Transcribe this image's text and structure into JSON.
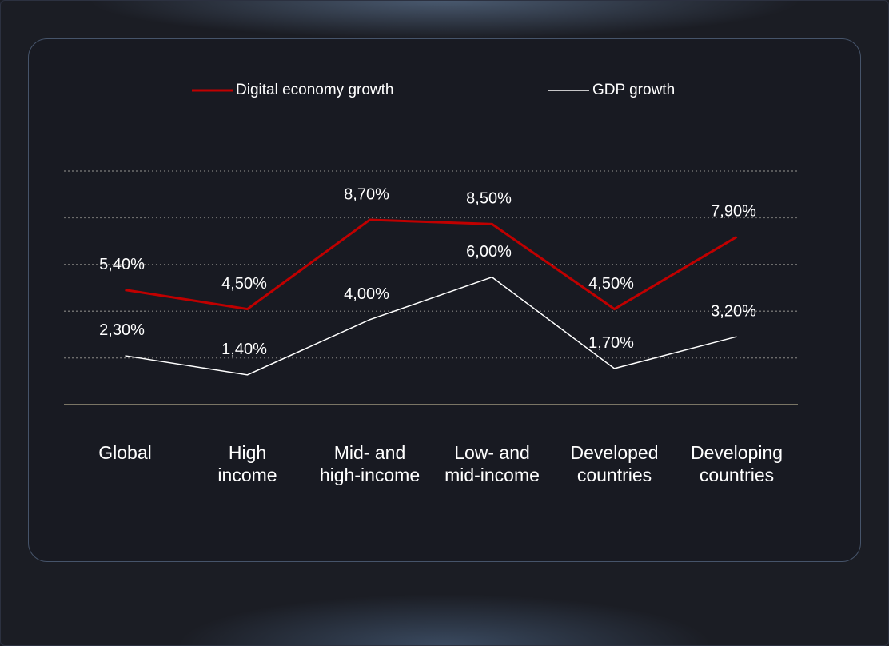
{
  "chart_data": {
    "type": "line",
    "categories": [
      "Global",
      "High\nincome",
      "Mid- and\nhigh-income",
      "Low- and\nmid-income",
      "Developed\ncountries",
      "Developing\ncountries"
    ],
    "series": [
      {
        "name": "Digital economy growth",
        "color": "#c00000",
        "values": [
          5.4,
          4.5,
          8.7,
          8.5,
          4.5,
          7.9
        ],
        "value_labels": [
          "5,40%",
          "4,50%",
          "8,70%",
          "8,50%",
          "4,50%",
          "7,90%"
        ]
      },
      {
        "name": "GDP growth",
        "color": "#ffffff",
        "values": [
          2.3,
          1.4,
          4.0,
          6.0,
          1.7,
          3.2
        ],
        "value_labels": [
          "2,30%",
          "1,40%",
          "4,00%",
          "6,00%",
          "1,70%",
          "3,20%"
        ]
      }
    ],
    "ylim": [
      0,
      11
    ],
    "yticks": [
      0,
      2.2,
      4.4,
      6.6,
      8.8,
      11
    ],
    "grid": true,
    "legend": "top"
  }
}
